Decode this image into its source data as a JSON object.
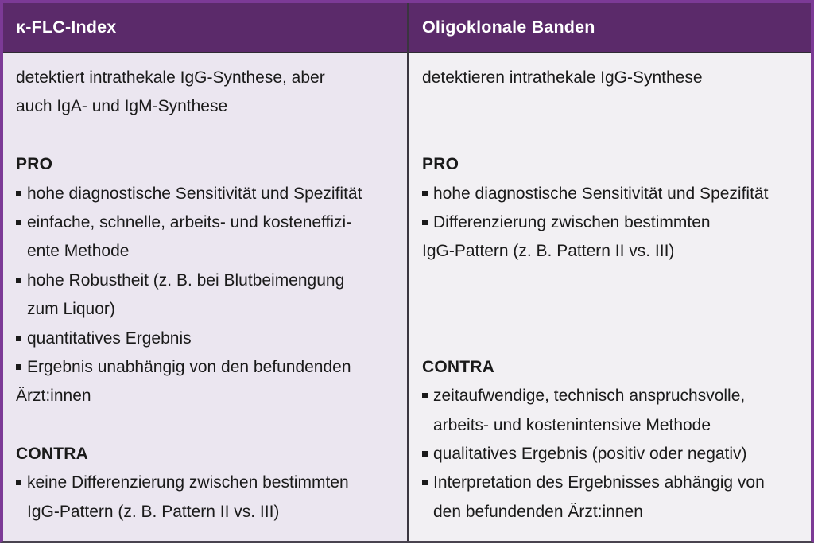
{
  "colors": {
    "outer_border_purple": "#7c3a96",
    "header_background": "#5b2a6a",
    "header_text": "#ffffff",
    "left_cell_background": "#ebe6f0",
    "right_cell_background": "#f2f0f3",
    "cell_divider_dark": "#3a3540",
    "body_text": "#1a1a1a"
  },
  "table": {
    "columns": [
      {
        "header": "κ-FLC-Index",
        "lines": [
          {
            "type": "plain",
            "text": "detektiert intrathekale IgG-Synthese, aber"
          },
          {
            "type": "plain",
            "text": "auch IgA- und IgM-Synthese"
          },
          {
            "type": "blank",
            "text": ""
          },
          {
            "type": "heading",
            "text": "PRO"
          },
          {
            "type": "bullet",
            "text": "hohe diagnostische Sensitivität und Spezifität"
          },
          {
            "type": "bullet",
            "text": "einfache, schnelle, arbeits- und kosteneffizi-"
          },
          {
            "type": "cont",
            "text": "ente Methode"
          },
          {
            "type": "bullet",
            "text": "hohe Robustheit (z. B. bei Blutbeimengung"
          },
          {
            "type": "cont",
            "text": "zum Liquor)"
          },
          {
            "type": "bullet",
            "text": "quantitatives Ergebnis"
          },
          {
            "type": "bullet",
            "text": "Ergebnis unabhängig von den befundenden"
          },
          {
            "type": "cont-flush",
            "text": "Ärzt:innen"
          },
          {
            "type": "blank",
            "text": ""
          },
          {
            "type": "heading",
            "text": "CONTRA"
          },
          {
            "type": "bullet",
            "text": "keine Differenzierung zwischen bestimmten"
          },
          {
            "type": "cont",
            "text": "IgG-Pattern (z. B. Pattern II vs. III)"
          }
        ]
      },
      {
        "header": "Oligoklonale Banden",
        "lines": [
          {
            "type": "plain",
            "text": "detektieren intrathekale IgG-Synthese"
          },
          {
            "type": "blank",
            "text": ""
          },
          {
            "type": "blank",
            "text": ""
          },
          {
            "type": "heading",
            "text": "PRO"
          },
          {
            "type": "bullet",
            "text": "hohe diagnostische Sensitivität und Spezifität"
          },
          {
            "type": "bullet",
            "text": "Differenzierung zwischen bestimmten"
          },
          {
            "type": "cont-flush",
            "text": "IgG-Pattern (z. B. Pattern II vs. III)"
          },
          {
            "type": "blank",
            "text": ""
          },
          {
            "type": "blank",
            "text": ""
          },
          {
            "type": "blank",
            "text": ""
          },
          {
            "type": "heading",
            "text": "CONTRA"
          },
          {
            "type": "bullet",
            "text": "zeitaufwendige, technisch anspruchsvolle,"
          },
          {
            "type": "cont",
            "text": "arbeits- und kostenintensive Methode"
          },
          {
            "type": "bullet",
            "text": "qualitatives Ergebnis (positiv oder negativ)"
          },
          {
            "type": "bullet",
            "text": "Interpretation des Ergebnisses abhängig von"
          },
          {
            "type": "cont",
            "text": "den befundenden Ärzt:innen"
          }
        ]
      }
    ]
  }
}
